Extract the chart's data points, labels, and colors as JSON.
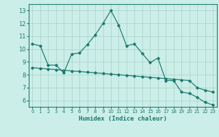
{
  "title": "",
  "xlabel": "Humidex (Indice chaleur)",
  "ylabel": "",
  "bg_color": "#cceee8",
  "grid_color": "#aad4cc",
  "line_color": "#1a7a6e",
  "xlim": [
    -0.5,
    23.5
  ],
  "ylim": [
    5.5,
    13.5
  ],
  "xticks": [
    0,
    1,
    2,
    3,
    4,
    5,
    6,
    7,
    8,
    9,
    10,
    11,
    12,
    13,
    14,
    15,
    16,
    17,
    18,
    19,
    20,
    21,
    22,
    23
  ],
  "yticks": [
    6,
    7,
    8,
    9,
    10,
    11,
    12,
    13
  ],
  "line1_x": [
    0,
    1,
    2,
    3,
    4,
    5,
    6,
    7,
    8,
    9,
    10,
    11,
    12,
    13,
    14,
    15,
    16,
    17,
    18,
    19,
    20,
    21,
    22,
    23
  ],
  "line1_y": [
    10.4,
    10.25,
    8.75,
    8.75,
    8.15,
    9.6,
    9.7,
    10.35,
    11.1,
    12.0,
    13.0,
    11.85,
    10.25,
    10.4,
    9.65,
    8.95,
    9.3,
    7.55,
    7.55,
    6.65,
    6.55,
    6.25,
    5.85,
    5.65
  ],
  "line2_x": [
    0,
    1,
    2,
    3,
    4,
    5,
    6,
    7,
    8,
    9,
    10,
    11,
    12,
    13,
    14,
    15,
    16,
    17,
    18,
    19,
    20,
    21,
    22,
    23
  ],
  "line2_y": [
    8.55,
    8.5,
    8.45,
    8.4,
    8.35,
    8.3,
    8.25,
    8.2,
    8.15,
    8.1,
    8.05,
    8.0,
    7.95,
    7.9,
    7.85,
    7.8,
    7.75,
    7.7,
    7.65,
    7.6,
    7.55,
    7.0,
    6.8,
    6.65
  ]
}
